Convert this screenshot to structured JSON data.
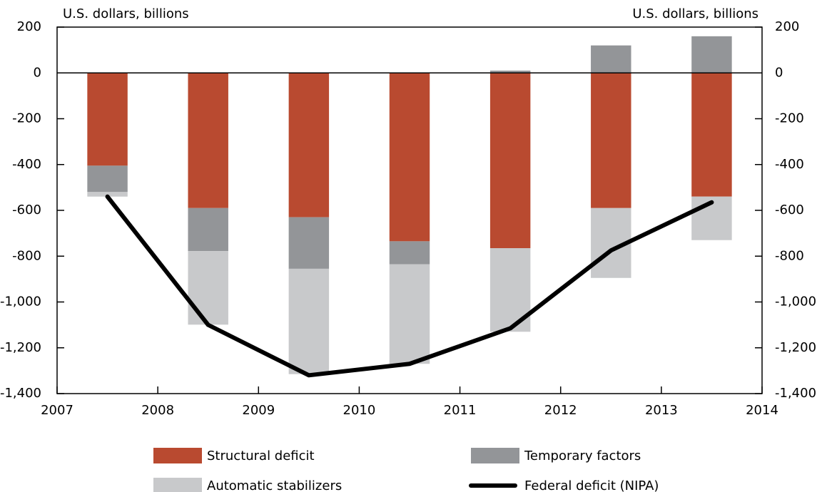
{
  "chart_data": {
    "type": "bar",
    "y_label": "U.S. dollars, billions",
    "y2_label": "U.S. dollars, billions",
    "x": [
      2007.5,
      2008.5,
      2009.5,
      2010.5,
      2011.5,
      2012.5,
      2013.5
    ],
    "xlim": [
      2007,
      2014
    ],
    "xticks": [
      2007,
      2008,
      2009,
      2010,
      2011,
      2012,
      2013,
      2014
    ],
    "ylim": [
      -1400,
      200
    ],
    "yticks": [
      200,
      0,
      -200,
      -400,
      -600,
      -800,
      {
        "value": -1000,
        "label": "-1,000"
      },
      {
        "value": -1200,
        "label": "-1,200"
      },
      {
        "value": -1400,
        "label": "-1,400"
      }
    ],
    "y2lim": [
      -1400,
      200
    ],
    "y2ticks": [
      200,
      0,
      -200,
      -400,
      -600,
      -800,
      {
        "value": -1000,
        "label": "-1,000"
      },
      {
        "value": -1200,
        "label": "-1,200"
      },
      {
        "value": -1400,
        "label": "-1,400"
      }
    ],
    "series": [
      {
        "name": "Structural deficit",
        "type": "bar",
        "color": "#b94a30",
        "values": [
          -405,
          -590,
          -630,
          -735,
          -765,
          -590,
          -540
        ]
      },
      {
        "name": "Temporary factors",
        "type": "bar",
        "color": "#939598",
        "values": [
          -115,
          -188,
          -225,
          -100,
          10,
          120,
          160
        ]
      },
      {
        "name": "Automatic stabilizers",
        "type": "bar",
        "color": "#c8c9cb",
        "values": [
          -20,
          -321,
          -460,
          -435,
          -365,
          -305,
          -190
        ]
      },
      {
        "name": "Federal deficit (NIPA)",
        "type": "line",
        "color": "#000000",
        "values": [
          -540,
          -1100,
          -1320,
          -1270,
          -1115,
          -775,
          -565
        ]
      }
    ]
  }
}
